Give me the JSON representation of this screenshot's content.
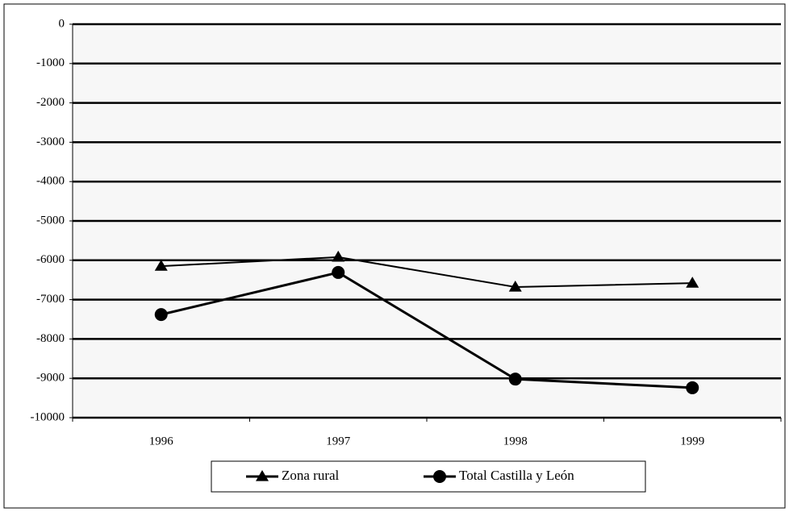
{
  "chart_data": {
    "type": "line",
    "categories": [
      "1996",
      "1997",
      "1998",
      "1999"
    ],
    "series": [
      {
        "name": "Zona rural",
        "color": "#000000",
        "marker": "triangle",
        "values": [
          -6150,
          -5920,
          -6680,
          -6580
        ]
      },
      {
        "name": "Total Castilla y León",
        "color": "#000000",
        "marker": "circle",
        "values": [
          -7380,
          -6310,
          -9020,
          -9240
        ]
      }
    ],
    "ylim": [
      -10000,
      0
    ],
    "yticks": [
      0,
      -1000,
      -2000,
      -3000,
      -4000,
      -5000,
      -6000,
      -7000,
      -8000,
      -9000,
      -10000
    ],
    "grid": true,
    "legend": "bottom"
  }
}
